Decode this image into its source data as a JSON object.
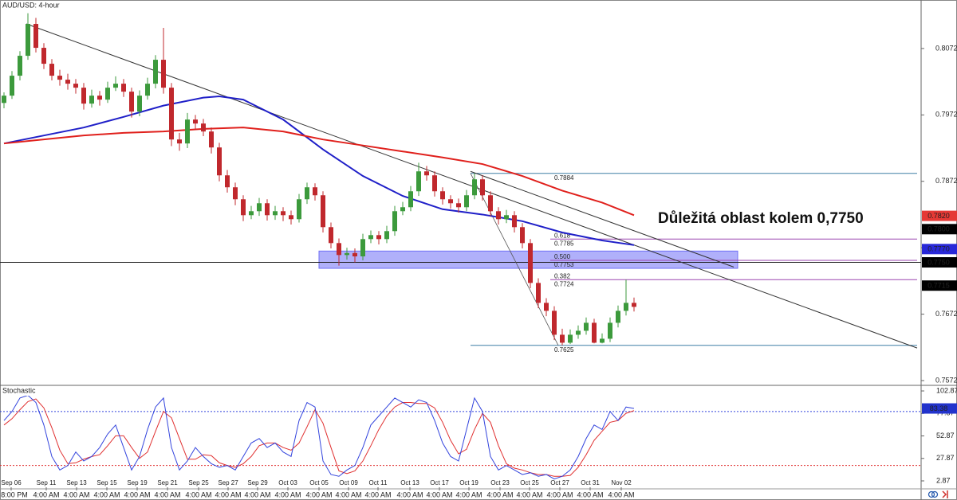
{
  "chart_data": {
    "type": "candlestick",
    "title": "AUD/USD: 4-hour",
    "annotation": "Důležitá oblast kolem 0,7750",
    "xlim": [
      -0.5,
      115
    ],
    "xticks": [
      {
        "value": 0.9,
        "label": "Sep 06"
      },
      {
        "value": 5.3,
        "label": "Sep 11"
      },
      {
        "value": 9.1,
        "label": "Sep 13"
      },
      {
        "value": 12.9,
        "label": "Sep 15"
      },
      {
        "value": 16.7,
        "label": "Sep 19"
      },
      {
        "value": 20.5,
        "label": "Sep 21"
      },
      {
        "value": 24.4,
        "label": "Sep 25"
      },
      {
        "value": 28.1,
        "label": "Sep 27"
      },
      {
        "value": 31.8,
        "label": "Sep 29"
      },
      {
        "value": 35.6,
        "label": "Oct 03"
      },
      {
        "value": 39.5,
        "label": "Oct 05"
      },
      {
        "value": 43.2,
        "label": "Oct 09"
      },
      {
        "value": 46.9,
        "label": "Oct 11"
      },
      {
        "value": 50.9,
        "label": "Oct 13"
      },
      {
        "value": 54.6,
        "label": "Oct 17"
      },
      {
        "value": 58.3,
        "label": "Oct 19"
      },
      {
        "value": 62.2,
        "label": "Oct 23"
      },
      {
        "value": 65.9,
        "label": "Oct 25"
      },
      {
        "value": 69.7,
        "label": "Oct 27"
      },
      {
        "value": 73.5,
        "label": "Oct 31"
      },
      {
        "value": 77.4,
        "label": "Nov 02"
      }
    ],
    "time_labels": [
      "8:00 PM",
      "4:00 AM",
      "4:00 AM",
      "4:00 AM",
      "4:00 AM",
      "4:00 AM",
      "4:00 AM",
      "4:00 AM",
      "4:00 AM",
      "4:00 AM",
      "4:00 AM",
      "4:00 AM",
      "4:00 AM",
      "4:00 AM",
      "4:00 AM",
      "4:00 AM",
      "4:00 AM",
      "4:00 AM",
      "4:00 AM",
      "4:00 AM",
      "4:00 AM"
    ],
    "ylim": [
      0.7566,
      0.8145
    ],
    "yticks": [
      0.8072,
      0.7972,
      0.7872,
      0.7772,
      0.7672,
      0.7572
    ],
    "up_color": "#3c9a3c",
    "down_color": "#c0282d",
    "ohlc": [
      [
        0.799,
        0.8006,
        0.7982,
        0.8001
      ],
      [
        0.8001,
        0.8038,
        0.7996,
        0.8031
      ],
      [
        0.8031,
        0.8068,
        0.8024,
        0.8061
      ],
      [
        0.8061,
        0.8125,
        0.8055,
        0.8109
      ],
      [
        0.8109,
        0.8118,
        0.8066,
        0.8073
      ],
      [
        0.8073,
        0.808,
        0.8041,
        0.8049
      ],
      [
        0.8049,
        0.8056,
        0.8024,
        0.8031
      ],
      [
        0.8031,
        0.804,
        0.8016,
        0.8025
      ],
      [
        0.8025,
        0.8034,
        0.801,
        0.8019
      ],
      [
        0.8019,
        0.8026,
        0.8004,
        0.8013
      ],
      [
        0.8013,
        0.802,
        0.798,
        0.7989
      ],
      [
        0.7989,
        0.801,
        0.7983,
        0.8001
      ],
      [
        0.8001,
        0.8008,
        0.7986,
        0.7995
      ],
      [
        0.7995,
        0.8022,
        0.799,
        0.8013
      ],
      [
        0.8013,
        0.803,
        0.8008,
        0.8019
      ],
      [
        0.8019,
        0.8026,
        0.7999,
        0.8007
      ],
      [
        0.8007,
        0.8013,
        0.7968,
        0.7977
      ],
      [
        0.7977,
        0.8009,
        0.797,
        0.8001
      ],
      [
        0.8001,
        0.8028,
        0.7995,
        0.8019
      ],
      [
        0.8019,
        0.8062,
        0.8012,
        0.8055
      ],
      [
        0.8055,
        0.8103,
        0.8004,
        0.8013
      ],
      [
        0.8013,
        0.802,
        0.7925,
        0.7935
      ],
      [
        0.7935,
        0.7945,
        0.7918,
        0.7929
      ],
      [
        0.7929,
        0.7975,
        0.7922,
        0.7965
      ],
      [
        0.7965,
        0.7972,
        0.795,
        0.7959
      ],
      [
        0.7959,
        0.7966,
        0.794,
        0.7947
      ],
      [
        0.7947,
        0.7953,
        0.7914,
        0.7923
      ],
      [
        0.7923,
        0.793,
        0.7872,
        0.7881
      ],
      [
        0.7881,
        0.7889,
        0.7855,
        0.7863
      ],
      [
        0.7863,
        0.787,
        0.7836,
        0.7845
      ],
      [
        0.7845,
        0.7851,
        0.7812,
        0.7821
      ],
      [
        0.7821,
        0.7835,
        0.7815,
        0.7827
      ],
      [
        0.7827,
        0.7847,
        0.782,
        0.7839
      ],
      [
        0.7839,
        0.7845,
        0.7813,
        0.7821
      ],
      [
        0.7821,
        0.7835,
        0.7814,
        0.7827
      ],
      [
        0.7827,
        0.7833,
        0.7812,
        0.7821
      ],
      [
        0.7821,
        0.7828,
        0.7807,
        0.7815
      ],
      [
        0.7815,
        0.7853,
        0.781,
        0.7845
      ],
      [
        0.7845,
        0.787,
        0.7838,
        0.7863
      ],
      [
        0.7863,
        0.7869,
        0.7843,
        0.7851
      ],
      [
        0.7851,
        0.7857,
        0.7795,
        0.7803
      ],
      [
        0.7803,
        0.781,
        0.7771,
        0.7779
      ],
      [
        0.7779,
        0.7786,
        0.7745,
        0.7761
      ],
      [
        0.7761,
        0.7772,
        0.7754,
        0.7764
      ],
      [
        0.7764,
        0.7771,
        0.775,
        0.7759
      ],
      [
        0.7759,
        0.7793,
        0.7753,
        0.7785
      ],
      [
        0.7785,
        0.7798,
        0.7779,
        0.7791
      ],
      [
        0.7791,
        0.7797,
        0.7777,
        0.7785
      ],
      [
        0.7785,
        0.7805,
        0.7779,
        0.7797
      ],
      [
        0.7797,
        0.7835,
        0.779,
        0.7827
      ],
      [
        0.7827,
        0.7841,
        0.7821,
        0.7833
      ],
      [
        0.7833,
        0.7865,
        0.7827,
        0.7857
      ],
      [
        0.7857,
        0.79,
        0.785,
        0.7887
      ],
      [
        0.7887,
        0.7895,
        0.7873,
        0.7881
      ],
      [
        0.7881,
        0.7887,
        0.7849,
        0.7857
      ],
      [
        0.7857,
        0.7863,
        0.7837,
        0.7845
      ],
      [
        0.7845,
        0.7851,
        0.7831,
        0.7839
      ],
      [
        0.7839,
        0.7846,
        0.7825,
        0.7833
      ],
      [
        0.7833,
        0.7859,
        0.7827,
        0.7851
      ],
      [
        0.7851,
        0.7884,
        0.7845,
        0.7875
      ],
      [
        0.7875,
        0.7881,
        0.7843,
        0.7851
      ],
      [
        0.7851,
        0.7857,
        0.7819,
        0.7827
      ],
      [
        0.7827,
        0.7833,
        0.7807,
        0.7815
      ],
      [
        0.7815,
        0.7829,
        0.7809,
        0.7821
      ],
      [
        0.7821,
        0.7827,
        0.7795,
        0.7803
      ],
      [
        0.7803,
        0.7809,
        0.7771,
        0.7779
      ],
      [
        0.7779,
        0.7785,
        0.7711,
        0.7719
      ],
      [
        0.7719,
        0.7726,
        0.7681,
        0.7689
      ],
      [
        0.7689,
        0.7696,
        0.7669,
        0.7677
      ],
      [
        0.7677,
        0.7684,
        0.7633,
        0.7641
      ],
      [
        0.7641,
        0.765,
        0.7625,
        0.7629
      ],
      [
        0.7629,
        0.7649,
        0.7627,
        0.7641
      ],
      [
        0.7641,
        0.7655,
        0.7635,
        0.7647
      ],
      [
        0.7647,
        0.7667,
        0.7641,
        0.7659
      ],
      [
        0.7659,
        0.7665,
        0.7628,
        0.7629
      ],
      [
        0.7629,
        0.7643,
        0.7628,
        0.7635
      ],
      [
        0.7635,
        0.7667,
        0.763,
        0.7659
      ],
      [
        0.7659,
        0.7685,
        0.7652,
        0.7677
      ],
      [
        0.7677,
        0.7724,
        0.767,
        0.7689
      ],
      [
        0.7689,
        0.7697,
        0.7676,
        0.7683
      ]
    ],
    "moving_averages": [
      {
        "color": "#1f1fc8",
        "x": [
          0,
          5,
          10,
          15,
          20,
          25,
          27,
          30,
          35,
          40,
          45,
          50,
          55,
          60,
          65,
          70,
          75,
          79
        ],
        "values": [
          0.7929,
          0.7941,
          0.7953,
          0.7969,
          0.7986,
          0.7998,
          0.8,
          0.7995,
          0.7965,
          0.792,
          0.788,
          0.785,
          0.783,
          0.7822,
          0.7812,
          0.7795,
          0.7783,
          0.7776
        ]
      },
      {
        "color": "#e0201c",
        "x": [
          0,
          5,
          10,
          15,
          20,
          25,
          30,
          35,
          40,
          45,
          50,
          55,
          60,
          65,
          70,
          75,
          79
        ],
        "values": [
          0.7929,
          0.7935,
          0.7941,
          0.7945,
          0.7947,
          0.7951,
          0.7953,
          0.7947,
          0.7935,
          0.7926,
          0.7917,
          0.7908,
          0.7898,
          0.788,
          0.7858,
          0.784,
          0.7821
        ]
      }
    ],
    "trend_lines": [
      {
        "color": "#333333",
        "x": [
          2.8,
          114.5
        ],
        "values": [
          0.8109,
          0.7621
        ]
      },
      {
        "color": "#333333",
        "x": [
          58.5,
          91.5
        ],
        "values": [
          0.7887,
          0.7743
        ]
      }
    ],
    "horizontal_line": {
      "color": "#222222",
      "value": 0.775
    },
    "zone": {
      "color": "#6f6ff5",
      "x": [
        39.5,
        92
      ],
      "values": [
        0.7767,
        0.7741
      ]
    },
    "fib_line": {
      "color": "#555555",
      "x": [
        58.5,
        69.5
      ],
      "values": [
        0.7884,
        0.7625
      ]
    },
    "fib_levels": [
      {
        "value": 0.7884,
        "color": "#3f7ea6",
        "x": [
          58.5,
          114.5
        ]
      },
      {
        "ratio": "0.618",
        "value": 0.7785,
        "color": "#9b45b0",
        "x": [
          68.5,
          114.5
        ]
      },
      {
        "ratio": "0.500",
        "value": 0.7753,
        "color": "#9b45b0",
        "x": [
          68.5,
          114.5
        ]
      },
      {
        "ratio": "0.382",
        "value": 0.7724,
        "color": "#9b45b0",
        "x": [
          68.5,
          114.5
        ]
      },
      {
        "value": 0.7625,
        "color": "#3f7ea6",
        "x": [
          58.5,
          114.5
        ]
      }
    ],
    "price_labels": [
      {
        "value": 0.782,
        "label": "0.7820",
        "color": "#e53935"
      },
      {
        "value": 0.78,
        "label": "0.7800",
        "color": "#000000"
      },
      {
        "value": 0.777,
        "label": "0.7770",
        "color": "#2828d8"
      },
      {
        "value": 0.775,
        "label": "0.7750",
        "color": "#000000"
      },
      {
        "value": 0.7715,
        "color": "#000000"
      }
    ],
    "stochastic": {
      "title": "Stochastic",
      "ylim": [
        -4.2,
        108.2
      ],
      "yticks": [
        102.87,
        77.87,
        52.87,
        27.87,
        2.87
      ],
      "levels": [
        {
          "value": 80,
          "color": "#3344dd"
        },
        {
          "value": 20,
          "color": "#e03030"
        }
      ],
      "current": {
        "value": 83.38,
        "color": "#2233cc"
      },
      "series": [
        {
          "color": "#3344dd",
          "values": [
            70,
            80,
            95,
            98,
            90,
            65,
            30,
            15,
            20,
            35,
            25,
            30,
            40,
            55,
            65,
            40,
            15,
            30,
            60,
            85,
            95,
            40,
            15,
            25,
            40,
            30,
            22,
            18,
            20,
            15,
            30,
            45,
            50,
            40,
            45,
            35,
            30,
            70,
            90,
            85,
            25,
            10,
            8,
            15,
            20,
            40,
            65,
            75,
            85,
            95,
            90,
            85,
            93,
            90,
            70,
            45,
            30,
            25,
            60,
            95,
            80,
            30,
            15,
            20,
            15,
            10,
            12,
            8,
            10,
            5,
            8,
            15,
            30,
            50,
            65,
            60,
            80,
            70,
            85,
            83.38
          ]
        },
        {
          "color": "#e03030",
          "values": [
            65,
            72,
            82,
            91,
            94,
            84,
            62,
            37,
            22,
            23,
            27,
            30,
            32,
            42,
            53,
            53,
            40,
            28,
            35,
            58,
            80,
            73,
            50,
            27,
            27,
            32,
            31,
            23,
            20,
            18,
            22,
            30,
            42,
            45,
            45,
            40,
            37,
            45,
            63,
            82,
            67,
            40,
            14,
            11,
            14,
            25,
            42,
            60,
            75,
            85,
            90,
            90,
            89,
            89,
            84,
            68,
            48,
            33,
            38,
            60,
            78,
            68,
            42,
            22,
            17,
            15,
            12,
            10,
            10,
            8,
            8,
            9,
            18,
            32,
            48,
            58,
            68,
            70,
            78,
            81
          ]
        }
      ]
    }
  }
}
